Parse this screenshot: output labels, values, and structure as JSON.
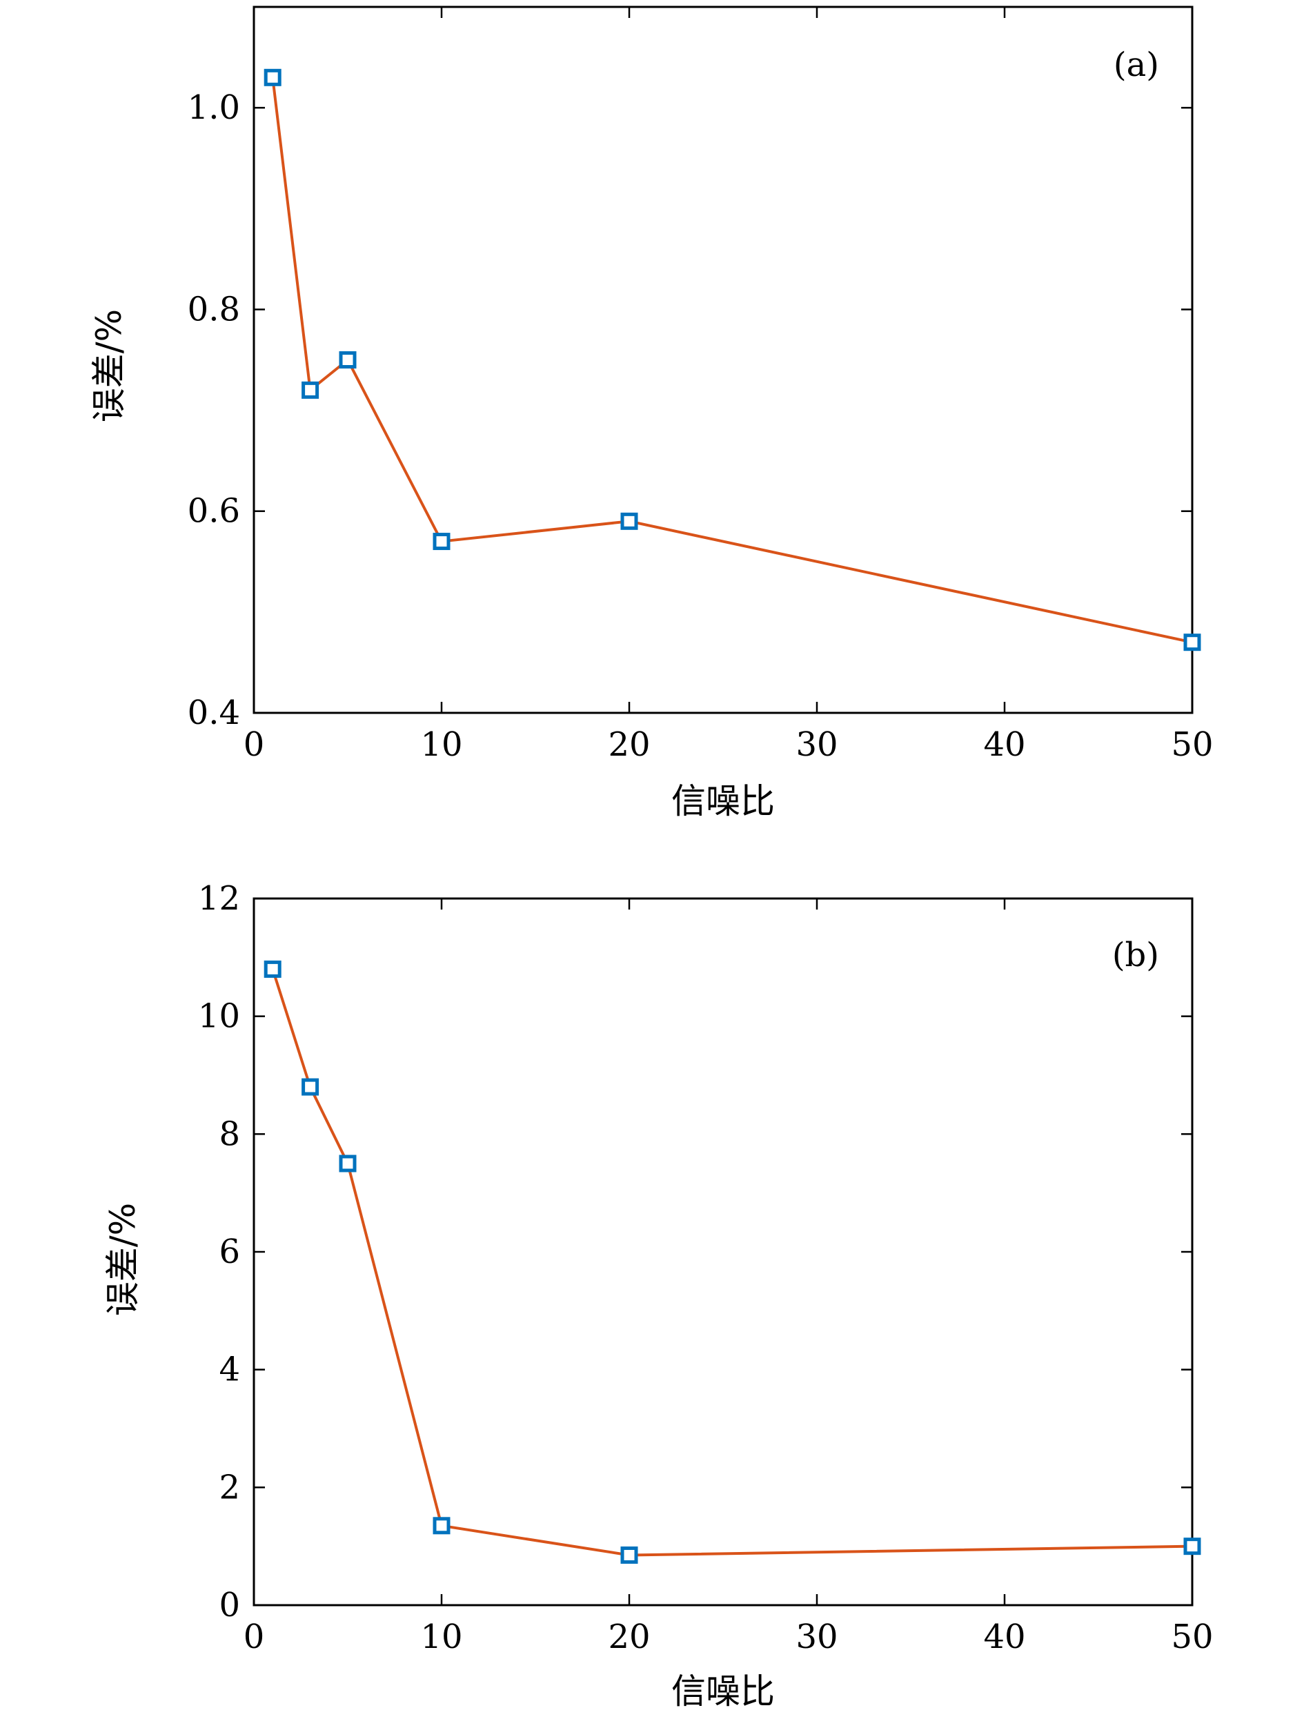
{
  "chart_data": [
    {
      "type": "line",
      "panel_label": "(a)",
      "xlabel": "信噪比",
      "ylabel": "误差/%",
      "xlim": [
        0,
        50
      ],
      "ylim": [
        0.4,
        1.1
      ],
      "xticks": [
        0,
        10,
        20,
        30,
        40,
        50
      ],
      "xtick_labels": [
        "0",
        "10",
        "20",
        "30",
        "40",
        "50"
      ],
      "yticks": [
        0.4,
        0.6,
        0.8,
        1.0
      ],
      "ytick_labels": [
        "0.4",
        "0.6",
        "0.8",
        "1.0"
      ],
      "x_spacing": "categorical-positions",
      "x_positions": [
        1,
        3,
        5,
        10,
        20,
        50
      ],
      "plot_x_positions": [
        1,
        3,
        5,
        10,
        20,
        50
      ],
      "x": [
        1,
        3,
        5,
        10,
        20,
        50
      ],
      "series": [
        {
          "values": [
            1.03,
            0.72,
            0.75,
            0.57,
            0.59,
            0.47
          ]
        }
      ],
      "grid": false,
      "line_color": "#d95319",
      "marker_color": "#0072bd",
      "marker": "square"
    },
    {
      "type": "line",
      "panel_label": "(b)",
      "xlabel": "信噪比",
      "ylabel": "误差/%",
      "xlim": [
        0,
        50
      ],
      "ylim": [
        0,
        12
      ],
      "xticks": [
        0,
        10,
        20,
        30,
        40,
        50
      ],
      "xtick_labels": [
        "0",
        "10",
        "20",
        "30",
        "40",
        "50"
      ],
      "yticks": [
        0,
        2,
        4,
        6,
        8,
        10,
        12
      ],
      "ytick_labels": [
        "0",
        "2",
        "4",
        "6",
        "8",
        "10",
        "12"
      ],
      "x": [
        1,
        3,
        5,
        10,
        20,
        50
      ],
      "series": [
        {
          "values": [
            10.8,
            8.8,
            7.5,
            1.35,
            0.85,
            1.0
          ]
        }
      ],
      "grid": false,
      "line_color": "#d95319",
      "marker_color": "#0072bd",
      "marker": "square"
    }
  ]
}
